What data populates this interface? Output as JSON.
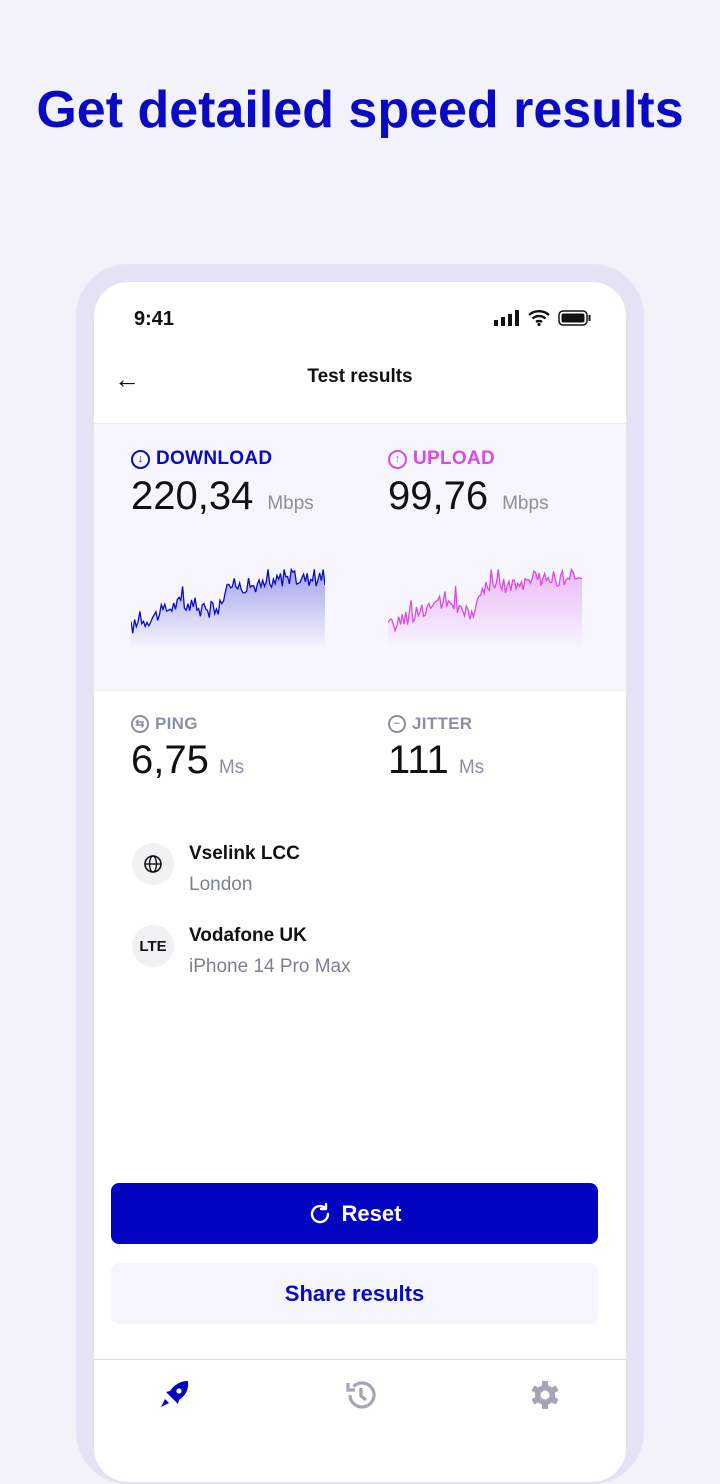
{
  "headline": "Get detailed speed results",
  "status_bar": {
    "time": "9:41"
  },
  "header": {
    "title": "Test results",
    "back_icon": "arrow-left-icon"
  },
  "download": {
    "label": "DOWNLOAD",
    "value": "220,34",
    "unit": "Mbps",
    "color": "#0a0ac4"
  },
  "upload": {
    "label": "UPLOAD",
    "value": "99,76",
    "unit": "Mbps",
    "color": "#d94ae6"
  },
  "ping": {
    "label": "PING",
    "value": "6,75",
    "unit": "Ms"
  },
  "jitter": {
    "label": "JITTER",
    "value": "111",
    "unit": "Ms"
  },
  "server": {
    "name": "Vselink LCC",
    "location": "London",
    "icon": "globe-icon"
  },
  "network": {
    "name": "Vodafone UK",
    "device": "iPhone 14 Pro Max",
    "icon_text": "LTE"
  },
  "buttons": {
    "reset": "Reset",
    "share": "Share results"
  },
  "tabbar": {
    "items": [
      {
        "icon": "rocket-icon",
        "active": true
      },
      {
        "icon": "history-icon",
        "active": false
      },
      {
        "icon": "gear-icon",
        "active": false
      }
    ]
  }
}
